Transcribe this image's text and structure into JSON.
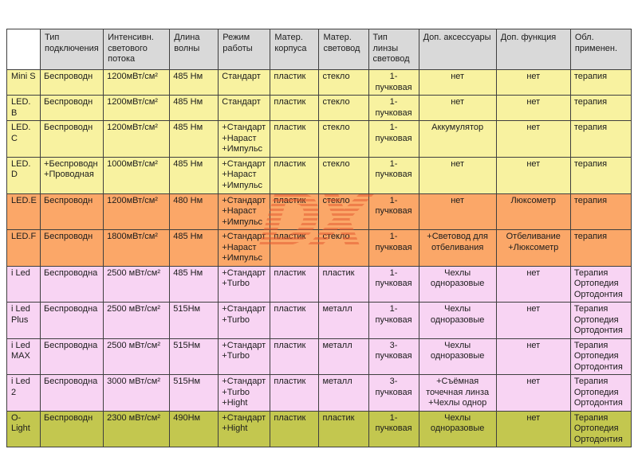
{
  "watermark": {
    "text": "DX",
    "color": "#e4572e"
  },
  "colors": {
    "header": "#d9d9d9",
    "corner": "#ffffff",
    "yellow": "#f8f2a0",
    "orange": "#fba768",
    "pink": "#f8d4f3",
    "olive": "#c3c74f"
  },
  "table": {
    "columns": [
      "",
      "Тип подключения",
      "Интенсивн. светового потока",
      "Длина волны",
      "Режим работы",
      "Матер. корпуса",
      "Матер. световод",
      "Тип линзы световод",
      "Доп. аксессуары",
      "Доп. функция",
      "Обл. применен."
    ],
    "rows": [
      {
        "name": "Mini S",
        "group": "yellow",
        "cells": [
          "Беспроводн",
          "1200мВт/см²",
          "485 Нм",
          "Стандарт",
          "пластик",
          "стекло",
          "1-пучковая",
          "нет",
          "нет",
          "терапия"
        ]
      },
      {
        "name": "LED. B",
        "group": "yellow",
        "cells": [
          "Беспроводн",
          "1200мВт/см²",
          "485 Нм",
          "Стандарт",
          "пластик",
          "стекло",
          "1-пучковая",
          "нет",
          "нет",
          "терапия"
        ]
      },
      {
        "name": "LED. C",
        "group": "yellow",
        "cells": [
          "Беспроводн",
          "1200мВт/см²",
          "485 Нм",
          "+Стандарт\n+Нараст\n+Импульс",
          "пластик",
          "стекло",
          "1-пучковая",
          "Аккумулятор",
          "нет",
          "терапия"
        ]
      },
      {
        "name": "LED. D",
        "group": "yellow",
        "cells": [
          "+Беспроводн\n+Проводная",
          "1000мВт/см²",
          "485 Нм",
          "+Стандарт\n+Нараст\n+Импульс",
          "пластик",
          "стекло",
          "1-пучковая",
          "нет",
          "нет",
          "терапия"
        ]
      },
      {
        "name": "LED.E",
        "group": "orange",
        "cells": [
          "Беспроводн",
          "1200мВт/см²",
          "480 Нм",
          "+Стандарт\n+Нараст\n+Импульс",
          "пластик",
          "стекло",
          "1-пучковая",
          "нет",
          "Люксометр",
          "терапия"
        ]
      },
      {
        "name": "LED.F",
        "group": "orange",
        "cells": [
          "Беспроводн",
          "1800мВт/см²",
          "485 Нм",
          "+Стандарт\n+Нараст\n+Импульс",
          "пластик",
          "стекло",
          "1-пучковая",
          "+Световод для отбеливания",
          "Отбеливание\n+Люксометр",
          "терапия"
        ]
      },
      {
        "name": "i Led",
        "group": "pink",
        "cells": [
          "Беспроводна",
          "2500 мВт/см²",
          "485 Нм",
          "+Стандарт\n+Turbo",
          "пластик",
          "пластик",
          "1-пучковая",
          "Чехлы одноразовые",
          "нет",
          "Терапия\nОртопедия\nОртодонтия"
        ]
      },
      {
        "name": "i Led Plus",
        "group": "pink",
        "cells": [
          "Беспроводна",
          "2500 мВт/см²",
          "515Нм",
          "+Стандарт\n+Turbo",
          "пластик",
          "металл",
          "1-пучковая",
          "Чехлы одноразовые",
          "нет",
          "Терапия\nОртопедия\nОртодонтия"
        ]
      },
      {
        "name": "i Led MAX",
        "group": "pink",
        "cells": [
          "Беспроводна",
          "2500 мВт/см²",
          "515Нм",
          "+Стандарт\n+Turbo",
          "пластик",
          "металл",
          "3-пучковая",
          "Чехлы одноразовые",
          "нет",
          "Терапия\nОртопедия\nОртодонтия"
        ]
      },
      {
        "name": "i Led 2",
        "group": "pink",
        "cells": [
          "Беспроводна",
          "3000 мВт/см²",
          "515Нм",
          "+Стандарт\n+Turbo\n+Hight",
          "пластик",
          "металл",
          "3-пучковая",
          "+Съёмная точечная линза\n+Чехлы однор",
          "нет",
          "Терапия\nОртопедия\nОртодонтия"
        ]
      },
      {
        "name": "O-Light",
        "group": "olive",
        "cells": [
          "Беспроводн",
          "2300 мВт/см²",
          "490Нм",
          "+Стандарт\n+Hight",
          "пластик",
          "пластик",
          "1-пучковая",
          "Чехлы одноразовые",
          "нет",
          "Терапия\nОртопедия\nОртодонтия"
        ]
      }
    ]
  }
}
